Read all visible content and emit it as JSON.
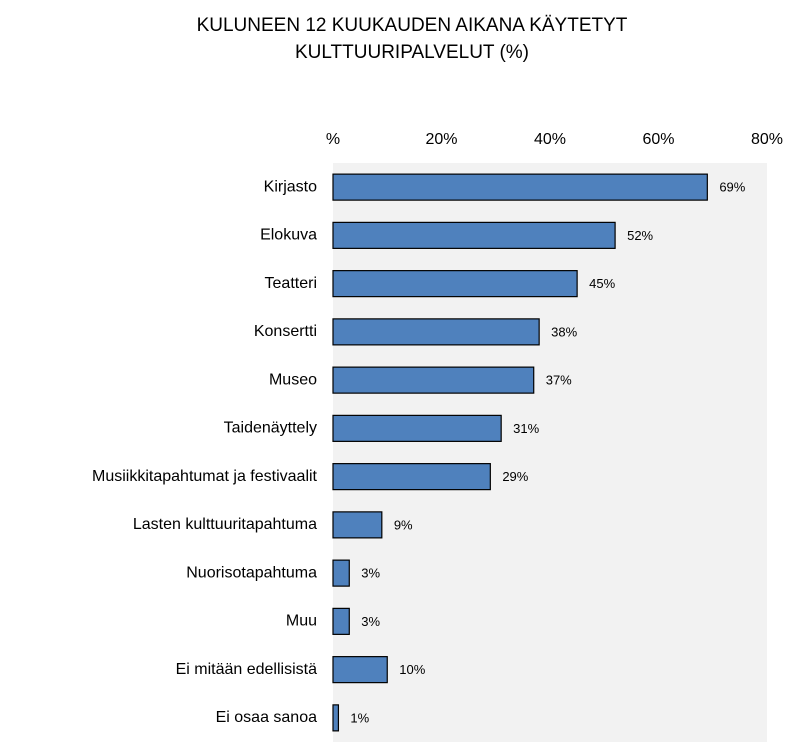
{
  "chart_data": {
    "type": "bar",
    "orientation": "horizontal",
    "title": "KULUNEEN 12 KUUKAUDEN AIKANA KÄYTETYT KULTTUURIPALVELUT (%)",
    "categories": [
      "Kirjasto",
      "Elokuva",
      "Teatteri",
      "Konsertti",
      "Museo",
      "Taidenäyttely",
      "Musiikkitapahtumat ja festivaalit",
      "Lasten kulttuuritapahtuma",
      "Nuorisotapahtuma",
      "Muu",
      "Ei mitään edellisistä",
      "Ei osaa sanoa"
    ],
    "values": [
      69,
      52,
      45,
      38,
      37,
      31,
      29,
      9,
      3,
      3,
      10,
      1
    ],
    "value_labels": [
      "69%",
      "52%",
      "45%",
      "38%",
      "37%",
      "31%",
      "29%",
      "9%",
      "3%",
      "3%",
      "10%",
      "1%"
    ],
    "color": "#4f81bd",
    "xlim": [
      0,
      80
    ],
    "xticks": [
      {
        "value": 0,
        "label": "%"
      },
      {
        "value": 20,
        "label": "20%"
      },
      {
        "value": 40,
        "label": "40%"
      },
      {
        "value": 60,
        "label": "60%"
      },
      {
        "value": 80,
        "label": "80%"
      }
    ]
  }
}
